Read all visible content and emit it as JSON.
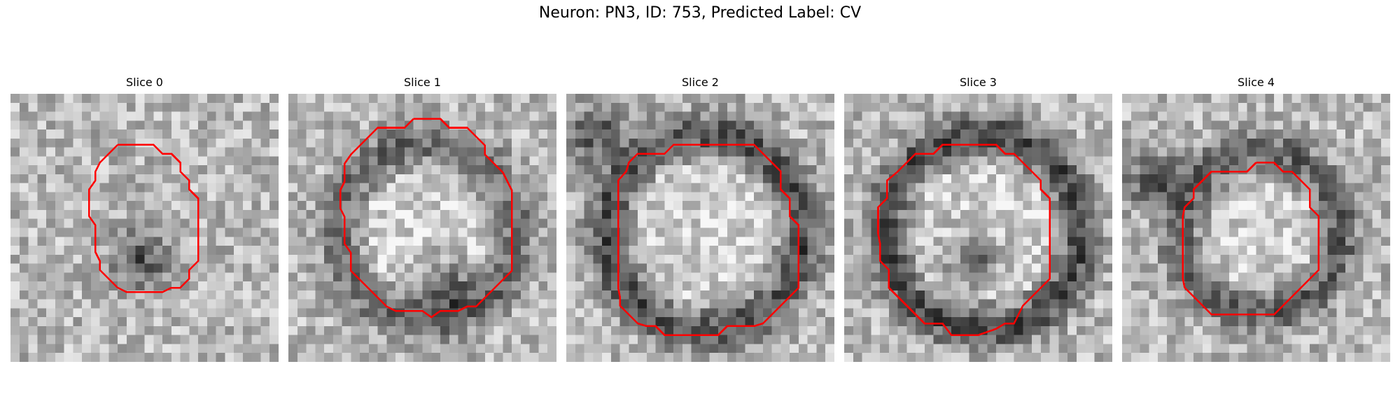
{
  "figure": {
    "title": "Neuron: PN3, ID: 753, Predicted Label: CV"
  },
  "slices": [
    {
      "title": "Slice 0",
      "ring": "none",
      "blob": "bottom"
    },
    {
      "title": "Slice 1",
      "ring": "soft",
      "blob": "lower-right"
    },
    {
      "title": "Slice 2",
      "ring": "dark",
      "blob": "top-left"
    },
    {
      "title": "Slice 3",
      "ring": "dark",
      "blob": "bottom"
    },
    {
      "title": "Slice 4",
      "ring": "medium",
      "blob": "left"
    }
  ],
  "colors": {
    "contour": "#ff0000",
    "background": "#ffffff"
  }
}
